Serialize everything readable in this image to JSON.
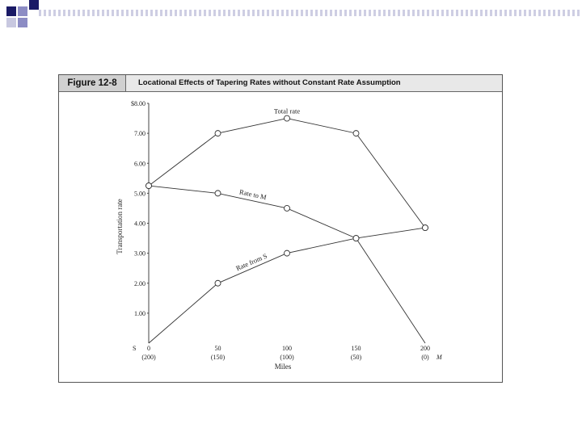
{
  "figure": {
    "label": "Figure 12-8",
    "title": "Locational Effects of Tapering Rates without Constant Rate Assumption"
  },
  "chart_data": {
    "type": "line",
    "x": [
      0,
      50,
      100,
      150,
      200
    ],
    "x_ticks_top": [
      "0",
      "50",
      "100",
      "150",
      "200"
    ],
    "x_ticks_bottom": [
      "(200)",
      "(150)",
      "(100)",
      "(50)",
      "(0)"
    ],
    "x_end_label_left": "S",
    "x_end_label_right": "M",
    "xlabel": "Miles",
    "ylabel": "Transportation rate",
    "y_ticks": [
      "$8.00",
      "7.00",
      "6.00",
      "5.00",
      "4.00",
      "3.00",
      "2.00",
      "1.00"
    ],
    "y_tick_values": [
      8,
      7,
      6,
      5,
      4,
      3,
      2,
      1
    ],
    "ylim": [
      0,
      8
    ],
    "xlim": [
      0,
      200
    ],
    "grid": false,
    "series": [
      {
        "name": "Total rate",
        "values": [
          5.25,
          7.0,
          7.5,
          7.0,
          3.85
        ]
      },
      {
        "name": "Rate to M",
        "values": [
          5.25,
          5.0,
          4.5,
          3.5,
          0
        ]
      },
      {
        "name": "Rate from S",
        "values": [
          0,
          2.0,
          3.0,
          3.5,
          3.85
        ]
      }
    ]
  },
  "colors": {
    "bullet_dark": "#1a1a66",
    "bullet_light": "#8c8cc4",
    "stripe_light": "#c8c8e0",
    "line": "#333333"
  }
}
